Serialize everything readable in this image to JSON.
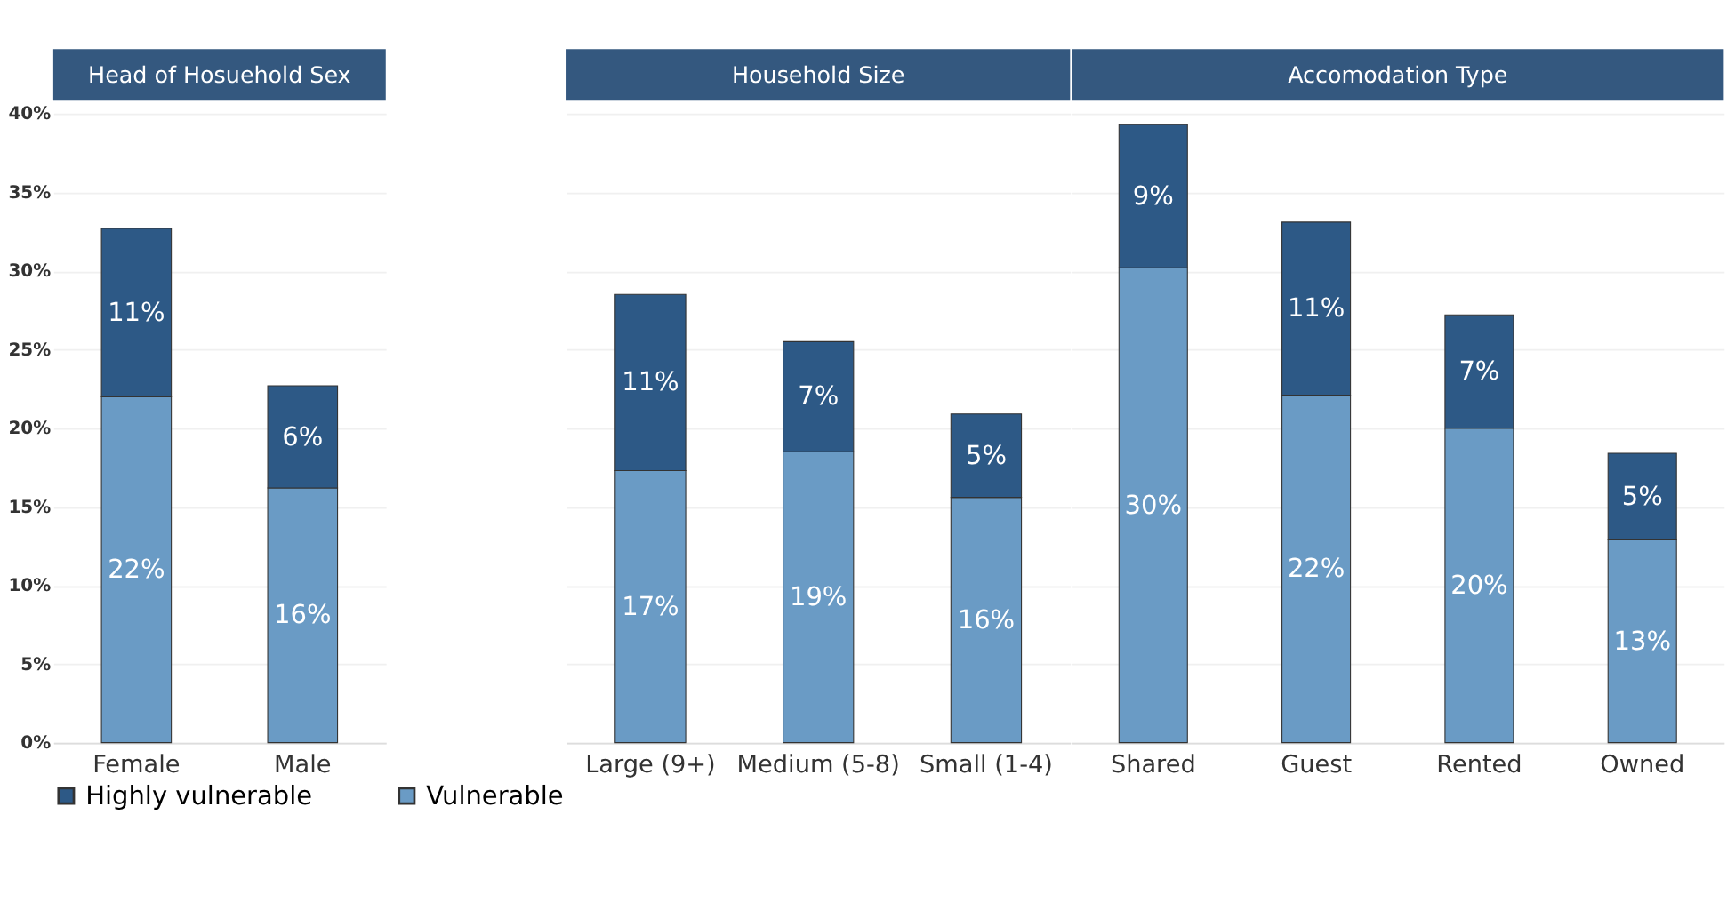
{
  "chart_data": [
    {
      "type": "bar",
      "title": "Head of Hosuehold Sex",
      "categories": [
        "Female",
        "Male"
      ],
      "stacked": true,
      "ylim": [
        0,
        40
      ],
      "yticks": [
        {
          "value": 0,
          "label": "0%"
        },
        {
          "value": 5,
          "label": "5%"
        },
        {
          "value": 10,
          "label": "10%"
        },
        {
          "value": 15,
          "label": "15%"
        },
        {
          "value": 20,
          "label": "20%"
        },
        {
          "value": 25,
          "label": "25%"
        },
        {
          "value": 30,
          "label": "30%"
        },
        {
          "value": 35,
          "label": "35%"
        },
        {
          "value": 40,
          "label": "40%"
        }
      ],
      "grid": "y",
      "legend": "bottom",
      "series": [
        {
          "name": "Vulnerable",
          "color": "#6a9bc5",
          "values": [
            22.0,
            16.2
          ],
          "value_labels": [
            "22%",
            "16%"
          ]
        },
        {
          "name": "Highly vulnerable",
          "color": "#2d5986",
          "values": [
            10.7,
            6.5
          ],
          "value_labels": [
            "11%",
            "6%"
          ]
        }
      ]
    },
    {
      "type": "bar",
      "title": "Household Size",
      "categories": [
        "Large (9+)",
        "Medium (5-8)",
        "Small (1-4)"
      ],
      "stacked": true,
      "ylim": [
        0,
        40
      ],
      "yticks": [
        0,
        5,
        10,
        15,
        20,
        25,
        30,
        35,
        40
      ],
      "grid": "y",
      "tick_labels": "x",
      "series": [
        {
          "color": "#6a9bc5",
          "values": [
            17.3,
            18.5,
            15.6
          ],
          "value_labels": [
            "17%",
            "19%",
            "16%"
          ]
        },
        {
          "color": "#2d5986",
          "values": [
            11.2,
            7.0,
            5.3
          ],
          "value_labels": [
            "11%",
            "7%",
            "5%"
          ]
        }
      ]
    },
    {
      "type": "bar",
      "title": "Accomodation Type",
      "categories": [
        "Shared",
        "Guest",
        "Rented",
        "Owned"
      ],
      "stacked": true,
      "ylim": [
        0,
        40
      ],
      "yticks": [
        0,
        5,
        10,
        15,
        20,
        25,
        30,
        35,
        40
      ],
      "grid": "y",
      "tick_labels": "x",
      "series": [
        {
          "color": "#6a9bc5",
          "values": [
            30.2,
            22.1,
            20.0,
            12.9
          ],
          "value_labels": [
            "30%",
            "22%",
            "20%",
            "13%"
          ]
        },
        {
          "color": "#2d5986",
          "values": [
            9.1,
            11.0,
            7.2,
            5.5
          ],
          "value_labels": [
            "9%",
            "11%",
            "7%",
            "5%"
          ]
        }
      ]
    }
  ]
}
